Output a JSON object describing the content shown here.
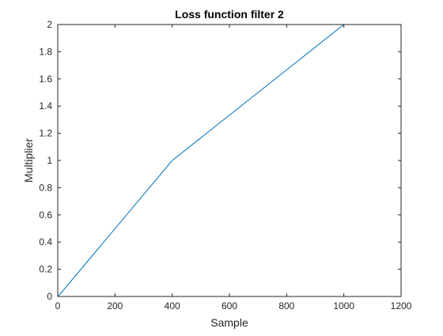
{
  "chart_data": {
    "type": "line",
    "title": "Loss function filter 2",
    "xlabel": "Sample",
    "ylabel": "Multiplier",
    "xlim": [
      0,
      1200
    ],
    "ylim": [
      0,
      2
    ],
    "xticks": [
      0,
      200,
      400,
      600,
      800,
      1000,
      1200
    ],
    "yticks": [
      0,
      0.2,
      0.4,
      0.6,
      0.8,
      1,
      1.2,
      1.4,
      1.6,
      1.8,
      2
    ],
    "xtick_labels": [
      "0",
      "200",
      "400",
      "600",
      "800",
      "1000",
      "1200"
    ],
    "ytick_labels": [
      "0",
      "0.2",
      "0.4",
      "0.6",
      "0.8",
      "1",
      "1.2",
      "1.4",
      "1.6",
      "1.8",
      "2"
    ],
    "grid": false,
    "series": [
      {
        "color": "#0072bd",
        "x": [
          1,
          400,
          1000
        ],
        "y": [
          0,
          1,
          2
        ]
      }
    ]
  }
}
